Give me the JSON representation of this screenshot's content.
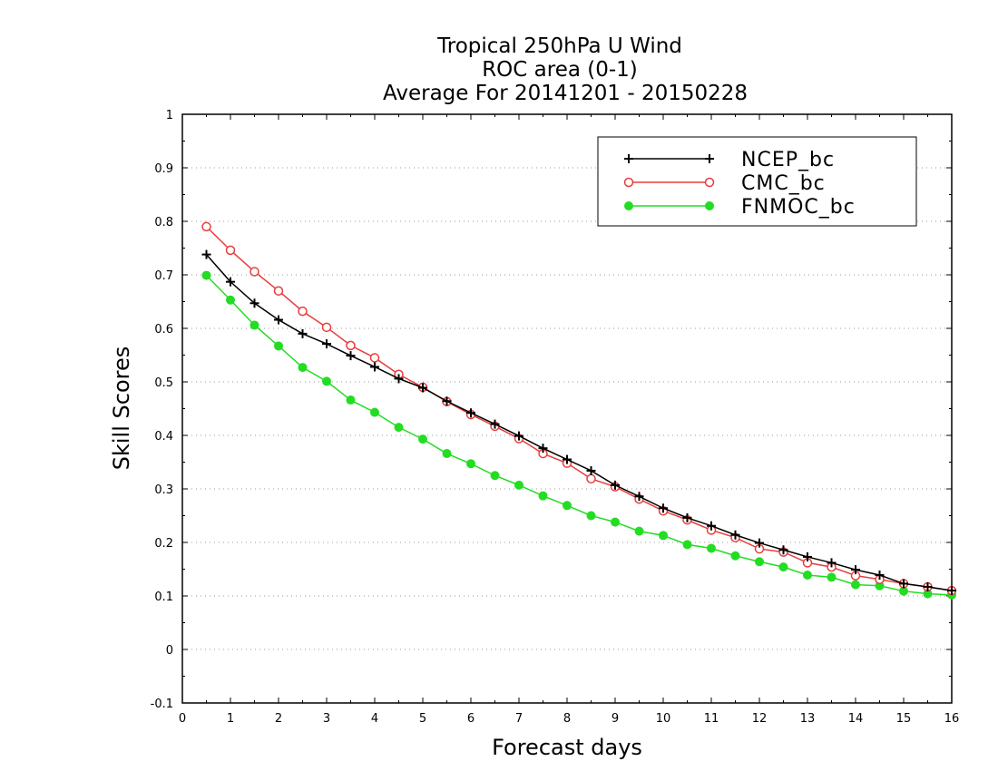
{
  "chart_data": {
    "type": "line",
    "title_lines": [
      "Tropical 250hPa U Wind",
      "ROC area (0-1)",
      "Average For 20141201 - 20150228"
    ],
    "xlabel": "Forecast days",
    "ylabel": "Skill Scores",
    "xlim": [
      0,
      16
    ],
    "ylim": [
      -0.1,
      1
    ],
    "x_ticks": [
      0,
      1,
      2,
      3,
      4,
      5,
      6,
      7,
      8,
      9,
      10,
      11,
      12,
      13,
      14,
      15,
      16
    ],
    "y_ticks": [
      -0.1,
      0,
      0.1,
      0.2,
      0.3,
      0.4,
      0.5,
      0.6,
      0.7,
      0.8,
      0.9,
      1
    ],
    "y_tick_labels": [
      "-0.1",
      "0",
      "0.1",
      "0.2",
      "0.3",
      "0.4",
      "0.5",
      "0.6",
      "0.7",
      "0.8",
      "0.9",
      "1"
    ],
    "grid": "horizontal dotted",
    "legend_position": "top-right",
    "x": [
      0.5,
      1,
      1.5,
      2,
      2.5,
      3,
      3.5,
      4,
      4.5,
      5,
      5.5,
      6,
      6.5,
      7,
      7.5,
      8,
      8.5,
      9,
      9.5,
      10,
      10.5,
      11,
      11.5,
      12,
      12.5,
      13,
      13.5,
      14,
      14.5,
      15,
      15.5,
      16
    ],
    "series": [
      {
        "name": "NCEP_bc",
        "color": "#000000",
        "marker": "plus",
        "values": [
          0.738,
          0.687,
          0.647,
          0.616,
          0.59,
          0.571,
          0.549,
          0.528,
          0.506,
          0.489,
          0.464,
          0.442,
          0.421,
          0.399,
          0.376,
          0.355,
          0.334,
          0.307,
          0.286,
          0.264,
          0.246,
          0.231,
          0.214,
          0.199,
          0.186,
          0.173,
          0.162,
          0.149,
          0.139,
          0.123,
          0.117,
          0.11
        ]
      },
      {
        "name": "CMC_bc",
        "color": "#e83c3c",
        "marker": "open-circle",
        "values": [
          0.79,
          0.746,
          0.706,
          0.67,
          0.632,
          0.602,
          0.568,
          0.545,
          0.514,
          0.49,
          0.463,
          0.439,
          0.417,
          0.394,
          0.366,
          0.348,
          0.319,
          0.304,
          0.281,
          0.259,
          0.242,
          0.223,
          0.209,
          0.188,
          0.182,
          0.162,
          0.154,
          0.138,
          0.131,
          0.123,
          0.117,
          0.11
        ]
      },
      {
        "name": "FNMOC_bc",
        "color": "#22dd22",
        "marker": "filled-circle",
        "values": [
          0.699,
          0.653,
          0.606,
          0.567,
          0.527,
          0.501,
          0.466,
          0.443,
          0.415,
          0.393,
          0.366,
          0.347,
          0.325,
          0.307,
          0.287,
          0.269,
          0.25,
          0.238,
          0.221,
          0.213,
          0.196,
          0.189,
          0.175,
          0.164,
          0.154,
          0.139,
          0.135,
          0.121,
          0.119,
          0.109,
          0.104,
          0.102
        ]
      }
    ]
  }
}
